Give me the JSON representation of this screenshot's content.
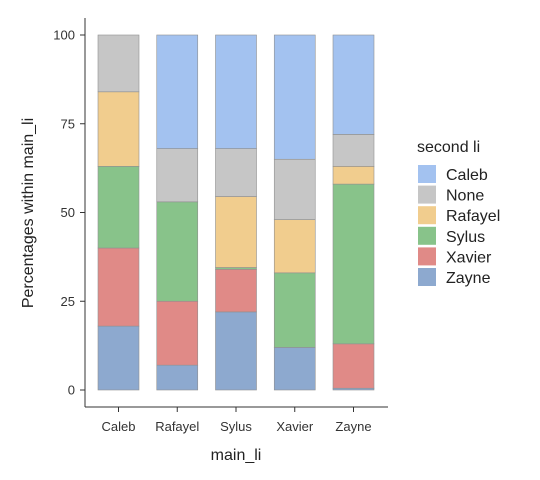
{
  "chart_data": {
    "type": "bar",
    "stacked": true,
    "xlabel": "main_li",
    "ylabel": "Percentages within main_li",
    "ylim": [
      0,
      100
    ],
    "yticks": [
      0,
      25,
      50,
      75,
      100
    ],
    "grid": false,
    "legend_position": "right",
    "legend_title": "second li",
    "categories": [
      "Caleb",
      "Rafayel",
      "Sylus",
      "Xavier",
      "Zayne"
    ],
    "series": [
      {
        "name": "Zayne",
        "color": "#8DA9CF",
        "values": [
          18,
          7,
          22,
          12,
          0.5
        ]
      },
      {
        "name": "Xavier",
        "color": "#E08A87",
        "values": [
          22,
          18,
          12,
          0,
          12.5
        ]
      },
      {
        "name": "Sylus",
        "color": "#88C38A",
        "values": [
          23,
          28,
          0.5,
          21,
          45
        ]
      },
      {
        "name": "Rafayel",
        "color": "#F1CD8E",
        "values": [
          21,
          0,
          20,
          15,
          5
        ]
      },
      {
        "name": "None",
        "color": "#C6C6C6",
        "values": [
          16,
          15,
          13.5,
          17,
          9
        ]
      },
      {
        "name": "Caleb",
        "color": "#A3C2F0",
        "values": [
          0,
          32,
          32,
          35,
          28
        ]
      }
    ],
    "legend_order": [
      "Caleb",
      "None",
      "Rafayel",
      "Sylus",
      "Xavier",
      "Zayne"
    ]
  }
}
